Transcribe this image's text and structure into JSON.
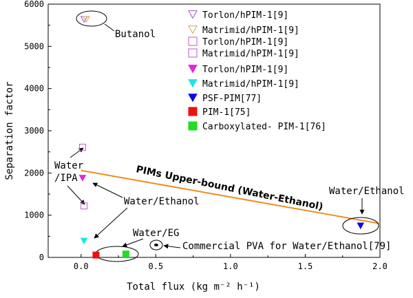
{
  "chart_data": {
    "type": "scatter",
    "xlabel": "Total flux (kg m⁻² h⁻¹)",
    "ylabel": "Separation factor",
    "xlim": [
      -0.22,
      2.0
    ],
    "ylim": [
      0,
      6000
    ],
    "xticks": [
      0.0,
      0.5,
      1.0,
      1.5,
      2.0
    ],
    "xtick_labels": [
      "0.0",
      "0.5",
      "1.0",
      "1.5",
      "2.0"
    ],
    "yticks": [
      0,
      1000,
      2000,
      3000,
      4000,
      5000,
      6000
    ],
    "ytick_labels": [
      "0",
      "1000",
      "2000",
      "3000",
      "4000",
      "5000",
      "6000"
    ],
    "legend_position": "top-right",
    "series": [
      {
        "name": "Torlon/hPIM-1[9]",
        "marker": "triangle-down-open",
        "color": "#a64dcf",
        "x": [
          0.02
        ],
        "y": [
          5640
        ]
      },
      {
        "name": "Matrimid/hPIM-1[9]",
        "marker": "triangle-down-open",
        "color": "#d4a54a",
        "x": [
          0.035
        ],
        "y": [
          5640
        ]
      },
      {
        "name": "Torlon/hPIM-1[9]",
        "marker": "square-open",
        "color": "#c05ac0",
        "x": [
          0.01
        ],
        "y": [
          2610
        ]
      },
      {
        "name": "Matrimid/hPIM-1[9]",
        "marker": "square-open",
        "color": "#b55ac8",
        "x": [
          0.02
        ],
        "y": [
          1220
        ]
      },
      {
        "name": "Torlon/hPIM-1[9]",
        "marker": "triangle-down-filled",
        "color": "#e026e0",
        "x": [
          0.01
        ],
        "y": [
          1880
        ]
      },
      {
        "name": "Matrimid/hPIM-1[9]",
        "marker": "triangle-down-filled",
        "color": "#19e6e6",
        "x": [
          0.02
        ],
        "y": [
          390
        ]
      },
      {
        "name": "PSF-PIM[77]",
        "marker": "triangle-down-filled",
        "color": "#0a0ae6",
        "x": [
          1.87
        ],
        "y": [
          750
        ]
      },
      {
        "name": "PIM-1[75]",
        "marker": "square-filled",
        "color": "#ee1111",
        "x": [
          0.1
        ],
        "y": [
          55
        ]
      },
      {
        "name": "Carboxylated- PIM-1[76]",
        "marker": "square-filled",
        "color": "#22dd22",
        "x": [
          0.3
        ],
        "y": [
          80
        ]
      }
    ],
    "upper_bound": {
      "label": "PIMs Upper-bound (Water-Ethanol)",
      "color": "#f08c1e",
      "x": [
        0.0,
        2.0
      ],
      "y": [
        2060,
        800
      ]
    },
    "annotations": {
      "butanol": "Butanol",
      "water_ipa": [
        "Water",
        "/IPA"
      ],
      "water_ethanol_left": "Water/Ethanol",
      "water_eg": "Water/EG",
      "commercial_pva": "Commercial PVA for Water/Ethanol[79]",
      "water_ethanol_right": "Water/Ethanol"
    }
  }
}
